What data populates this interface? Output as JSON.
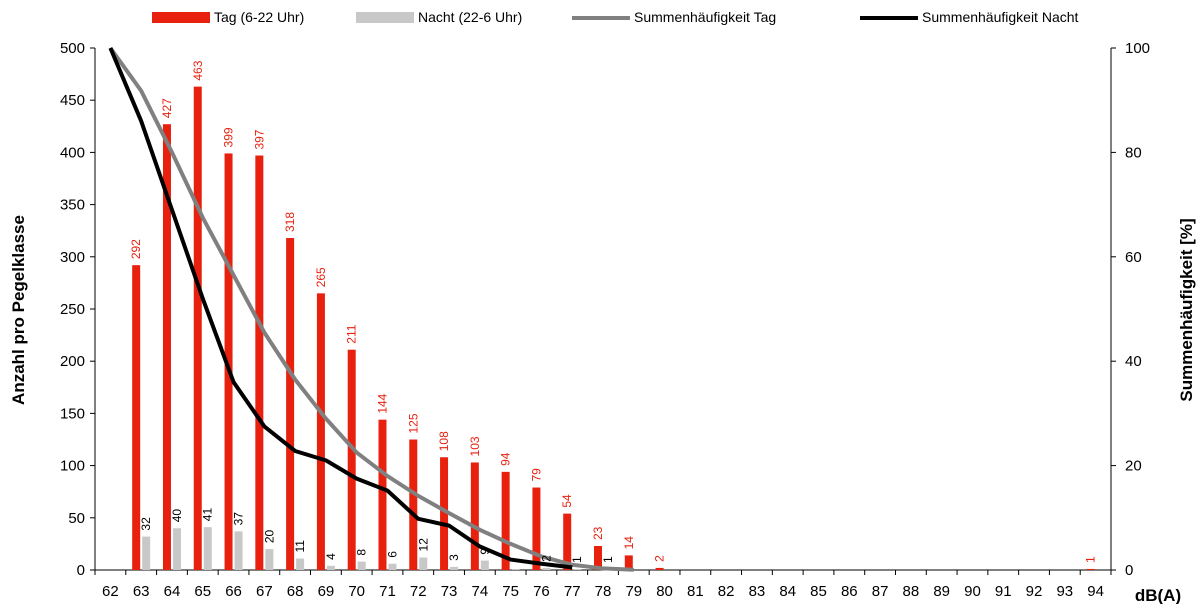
{
  "chart_data": {
    "type": "bar",
    "title": "",
    "xlabel": "dB(A)",
    "ylabel": "Anzahl pro Pegelklasse",
    "y2label": "Summenhäufigkeit [%]",
    "ylim": [
      0,
      500
    ],
    "y2lim": [
      0,
      100
    ],
    "yticks": [
      "0",
      "50",
      "100",
      "150",
      "200",
      "250",
      "300",
      "350",
      "400",
      "450",
      "500"
    ],
    "y2ticks": [
      "0",
      "20",
      "40",
      "60",
      "80",
      "100"
    ],
    "categories": [
      "62",
      "63",
      "64",
      "65",
      "66",
      "67",
      "68",
      "69",
      "70",
      "71",
      "72",
      "73",
      "74",
      "75",
      "76",
      "77",
      "78",
      "79",
      "80",
      "81",
      "82",
      "83",
      "84",
      "85",
      "86",
      "87",
      "88",
      "89",
      "90",
      "91",
      "92",
      "93",
      "94"
    ],
    "legend": {
      "position": "top",
      "entries": [
        "Tag (6-22 Uhr)",
        "Nacht (22-6 Uhr)",
        "Summenhäufigkeit Tag",
        "Summenhäufigkeit Nacht"
      ]
    },
    "series": [
      {
        "name": "Tag (6-22 Uhr)",
        "kind": "bar",
        "axis": "left",
        "color": "#e8210f",
        "label_color": "#e8210f",
        "values": [
          null,
          292,
          427,
          463,
          399,
          397,
          318,
          265,
          211,
          144,
          125,
          108,
          103,
          94,
          79,
          54,
          23,
          14,
          2,
          null,
          null,
          null,
          null,
          null,
          null,
          null,
          null,
          null,
          null,
          null,
          null,
          null,
          1
        ],
        "labels": [
          "",
          "292",
          "427",
          "463",
          "399",
          "397",
          "318",
          "265",
          "211",
          "144",
          "125",
          "108",
          "103",
          "94",
          "79",
          "54",
          "23",
          "14",
          "2",
          "",
          "",
          "",
          "",
          "",
          "",
          "",
          "",
          "",
          "",
          "",
          "",
          "",
          "1"
        ]
      },
      {
        "name": "Nacht (22-6 Uhr)",
        "kind": "bar",
        "axis": "left",
        "color": "#c8c8c8",
        "label_color": "#000000",
        "values": [
          null,
          32,
          40,
          41,
          37,
          20,
          11,
          4,
          8,
          6,
          12,
          3,
          9,
          1,
          2,
          1,
          1,
          null,
          null,
          null,
          null,
          null,
          null,
          null,
          null,
          null,
          null,
          null,
          null,
          null,
          null,
          null,
          null
        ],
        "labels": [
          "",
          "32",
          "40",
          "41",
          "37",
          "20",
          "11",
          "4",
          "8",
          "6",
          "12",
          "3",
          "9",
          "",
          "2",
          "1",
          "1",
          "",
          "",
          "",
          "",
          "",
          "",
          "",
          "",
          "",
          "",
          "",
          "",
          "",
          "",
          "",
          ""
        ]
      },
      {
        "name": "Summenhäufigkeit Tag",
        "kind": "line",
        "axis": "right",
        "color": "#808080",
        "values": [
          100,
          91.8,
          80.0,
          67.5,
          56.5,
          45.5,
          36.5,
          29.0,
          22.5,
          18.0,
          14.2,
          10.9,
          7.7,
          5.0,
          2.6,
          1.0,
          0.3,
          0.05,
          null,
          null,
          null,
          null,
          null,
          null,
          null,
          null,
          null,
          null,
          null,
          null,
          null,
          null,
          null
        ]
      },
      {
        "name": "Summenhäufigkeit Nacht",
        "kind": "line",
        "axis": "right",
        "color": "#000000",
        "values": [
          100,
          86.0,
          69.0,
          52.0,
          36.0,
          27.5,
          22.8,
          21.0,
          17.5,
          15.2,
          9.8,
          8.5,
          4.5,
          2.0,
          1.2,
          0.5,
          null,
          null,
          null,
          null,
          null,
          null,
          null,
          null,
          null,
          null,
          null,
          null,
          null,
          null,
          null,
          null,
          null
        ]
      }
    ],
    "grid": false
  }
}
